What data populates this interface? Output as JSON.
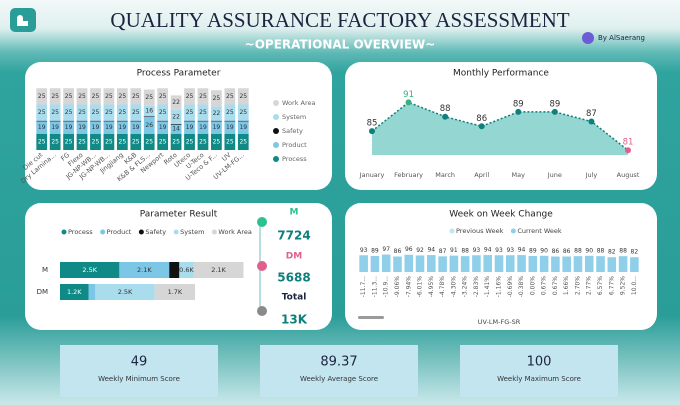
{
  "header": {
    "title": "QUALITY ASSURANCE FACTORY ASSESSMENT",
    "subtitle": "~OPERATIONAL OVERVIEW~",
    "author": "By AlSaerang"
  },
  "chart_data": [
    {
      "type": "stacked_bar",
      "title": "Process Parameter",
      "categories": [
        "Die cut",
        "Dry Lamina...",
        "FG",
        "Flexo",
        "JG-NP-WB...",
        "JG-NP-WB...",
        "Jingjiang",
        "K&B",
        "K&B & FLS...",
        "Newport",
        "Roto",
        "Uteco",
        "U-Teco",
        "U-Teco & F...",
        "UV",
        "UV-LM-FG..."
      ],
      "series": [
        {
          "name": "Process",
          "color": "#0f8a86",
          "values": [
            25,
            25,
            25,
            25,
            25,
            25,
            25,
            25,
            25,
            25,
            25,
            25,
            25,
            25,
            25,
            25
          ]
        },
        {
          "name": "Product",
          "color": "#7cc6e6",
          "values": [
            19,
            19,
            19,
            19,
            19,
            19,
            19,
            19,
            26,
            19,
            14,
            19,
            19,
            19,
            19,
            19
          ]
        },
        {
          "name": "Safety",
          "color": "#111111",
          "values": [
            1,
            1,
            1,
            1,
            1,
            1,
            1,
            1,
            1,
            1,
            1,
            1,
            1,
            1,
            1,
            1
          ]
        },
        {
          "name": "System",
          "color": "#a9dced",
          "values": [
            25,
            25,
            25,
            25,
            25,
            25,
            25,
            25,
            16,
            25,
            22,
            25,
            25,
            22,
            25,
            25
          ]
        },
        {
          "name": "Work Area",
          "color": "#d6d6d6",
          "values": [
            25,
            25,
            25,
            25,
            25,
            25,
            25,
            25,
            25,
            25,
            22,
            25,
            25,
            25,
            25,
            25
          ]
        }
      ],
      "ylim": [
        0,
        100
      ],
      "legend": "right"
    },
    {
      "type": "area",
      "title": "Monthly Performance",
      "categories": [
        "January",
        "February",
        "March",
        "April",
        "May",
        "June",
        "July",
        "August"
      ],
      "values": [
        85,
        91,
        88,
        86,
        89,
        89,
        87,
        81
      ],
      "color": "#0f7f7b",
      "fill": "#93d6d2",
      "max_color": "#35b07f",
      "min_color": "#e0608c",
      "ylim": [
        80,
        94
      ]
    },
    {
      "type": "stacked_barh",
      "title": "Parameter Result",
      "categories": [
        "M",
        "DM"
      ],
      "series": [
        {
          "name": "Process",
          "color": "#0f8a86",
          "values": [
            2500,
            1200
          ],
          "value_labels": [
            "2.5K",
            "1.2K"
          ]
        },
        {
          "name": "Product",
          "color": "#7cc6e6",
          "values": [
            2100,
            288
          ],
          "value_labels": [
            "2.1K",
            null
          ]
        },
        {
          "name": "Safety",
          "color": "#111111",
          "values": [
            424,
            0
          ],
          "value_labels": [
            null,
            null
          ]
        },
        {
          "name": "System",
          "color": "#a9dced",
          "values": [
            600,
            2500
          ],
          "value_labels": [
            "0.6K",
            "2.5K"
          ]
        },
        {
          "name": "Work Area",
          "color": "#d6d6d6",
          "values": [
            2100,
            1700
          ],
          "value_labels": [
            "2.1K",
            "1.7K"
          ]
        }
      ],
      "xlim": [
        0,
        8000
      ],
      "legend": "top"
    },
    {
      "type": "bar",
      "title": "Week on Week Change",
      "x_label": "UV-LM-FG-SR",
      "categories": [
        "-11.7...",
        "-11.3...",
        "-10.9...",
        "-9.06%",
        "-7.94%",
        "-6.01%",
        "-4.95%",
        "-4.78%",
        "-4.30%",
        "-3.24%",
        "-2.83%",
        "-1.41%",
        "-1.16%",
        "-0.69%",
        "-0.38%",
        "0.00%",
        "0.67%",
        "0.67%",
        "1.66%",
        "2.70%",
        "2.77%",
        "6.57%",
        "6.77%",
        "9.52%",
        "10.0..."
      ],
      "series": [
        {
          "name": "Previous Week",
          "color": "#bfe6f2",
          "values": [
            null,
            null,
            null,
            null,
            null,
            null,
            null,
            null,
            null,
            null,
            null,
            null,
            null,
            null,
            null,
            null,
            null,
            null,
            null,
            null,
            null,
            null,
            null,
            null,
            null
          ]
        },
        {
          "name": "Current Week",
          "color": "#8fcfea",
          "values": [
            93,
            89,
            97,
            86,
            96,
            92,
            94,
            87,
            91,
            88,
            93,
            94,
            93,
            93,
            94,
            89,
            90,
            86,
            86,
            88,
            90,
            88,
            82,
            88,
            82
          ]
        }
      ],
      "ylim": [
        0,
        100
      ],
      "legend": "top"
    }
  ],
  "totals": {
    "items": [
      {
        "label": "M",
        "value": 7724,
        "color": "#2cc28f"
      },
      {
        "label": "DM",
        "value": 5688,
        "color": "#e0608c"
      }
    ],
    "total_label": "Total",
    "total_value": "13K",
    "total_color": "#8a8a8a"
  },
  "kpis": [
    {
      "value": 49,
      "label": "Weekly Minimum Score"
    },
    {
      "value": 89.37,
      "label": "Weekly Average Score"
    },
    {
      "value": 100,
      "label": "Weekly Maximum Score"
    }
  ]
}
